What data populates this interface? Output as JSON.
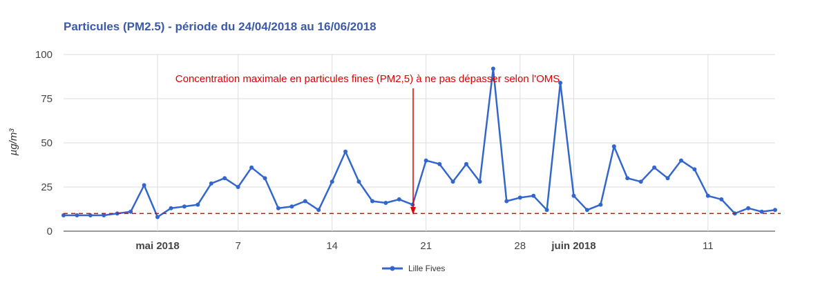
{
  "chart_data": {
    "type": "line",
    "title": "Particules (PM2.5) - période du 24/04/2018 au 16/06/2018",
    "ylabel": "µg/m³",
    "xlabel": "",
    "ylim": [
      0,
      100
    ],
    "yticks": [
      0,
      25,
      50,
      75,
      100
    ],
    "xlim": [
      "2018-04-24",
      "2018-06-16"
    ],
    "xticks": [
      {
        "label": "mai 2018",
        "date": "2018-05-01",
        "bold": true
      },
      {
        "label": "7",
        "date": "2018-05-07",
        "bold": false
      },
      {
        "label": "14",
        "date": "2018-05-14",
        "bold": false
      },
      {
        "label": "21",
        "date": "2018-05-21",
        "bold": false
      },
      {
        "label": "28",
        "date": "2018-05-28",
        "bold": false
      },
      {
        "label": "juin 2018",
        "date": "2018-06-01",
        "bold": true
      },
      {
        "label": "11",
        "date": "2018-06-11",
        "bold": false
      }
    ],
    "grid": true,
    "legend_position": "bottom",
    "series": [
      {
        "name": "Lille Fives",
        "color": "#3366cc",
        "x": [
          "2018-04-24",
          "2018-04-25",
          "2018-04-26",
          "2018-04-27",
          "2018-04-28",
          "2018-04-29",
          "2018-04-30",
          "2018-05-01",
          "2018-05-02",
          "2018-05-03",
          "2018-05-04",
          "2018-05-05",
          "2018-05-06",
          "2018-05-07",
          "2018-05-08",
          "2018-05-09",
          "2018-05-10",
          "2018-05-11",
          "2018-05-12",
          "2018-05-13",
          "2018-05-14",
          "2018-05-15",
          "2018-05-16",
          "2018-05-17",
          "2018-05-18",
          "2018-05-19",
          "2018-05-20",
          "2018-05-21",
          "2018-05-22",
          "2018-05-23",
          "2018-05-24",
          "2018-05-25",
          "2018-05-26",
          "2018-05-27",
          "2018-05-28",
          "2018-05-29",
          "2018-05-30",
          "2018-05-31",
          "2018-06-01",
          "2018-06-02",
          "2018-06-03",
          "2018-06-04",
          "2018-06-05",
          "2018-06-06",
          "2018-06-07",
          "2018-06-08",
          "2018-06-09",
          "2018-06-10",
          "2018-06-11",
          "2018-06-12",
          "2018-06-13",
          "2018-06-14",
          "2018-06-15",
          "2018-06-16"
        ],
        "values": [
          9,
          9,
          9,
          9,
          10,
          11,
          26,
          8,
          13,
          14,
          15,
          27,
          30,
          25,
          36,
          30,
          13,
          14,
          17,
          12,
          28,
          45,
          28,
          17,
          16,
          18,
          15,
          40,
          38,
          28,
          38,
          28,
          92,
          17,
          19,
          20,
          12,
          84,
          20,
          12,
          15,
          48,
          30,
          28,
          36,
          30,
          40,
          35,
          20,
          18,
          10,
          13,
          11,
          12
        ]
      }
    ],
    "annotations": [
      {
        "text": "Concentration maximale en particules fines (PM2,5) à ne pas dépasser selon l'OMS",
        "color": "#e00000"
      }
    ],
    "reference_line": {
      "y": 10,
      "style": "dashed",
      "color": "#e00000"
    }
  }
}
